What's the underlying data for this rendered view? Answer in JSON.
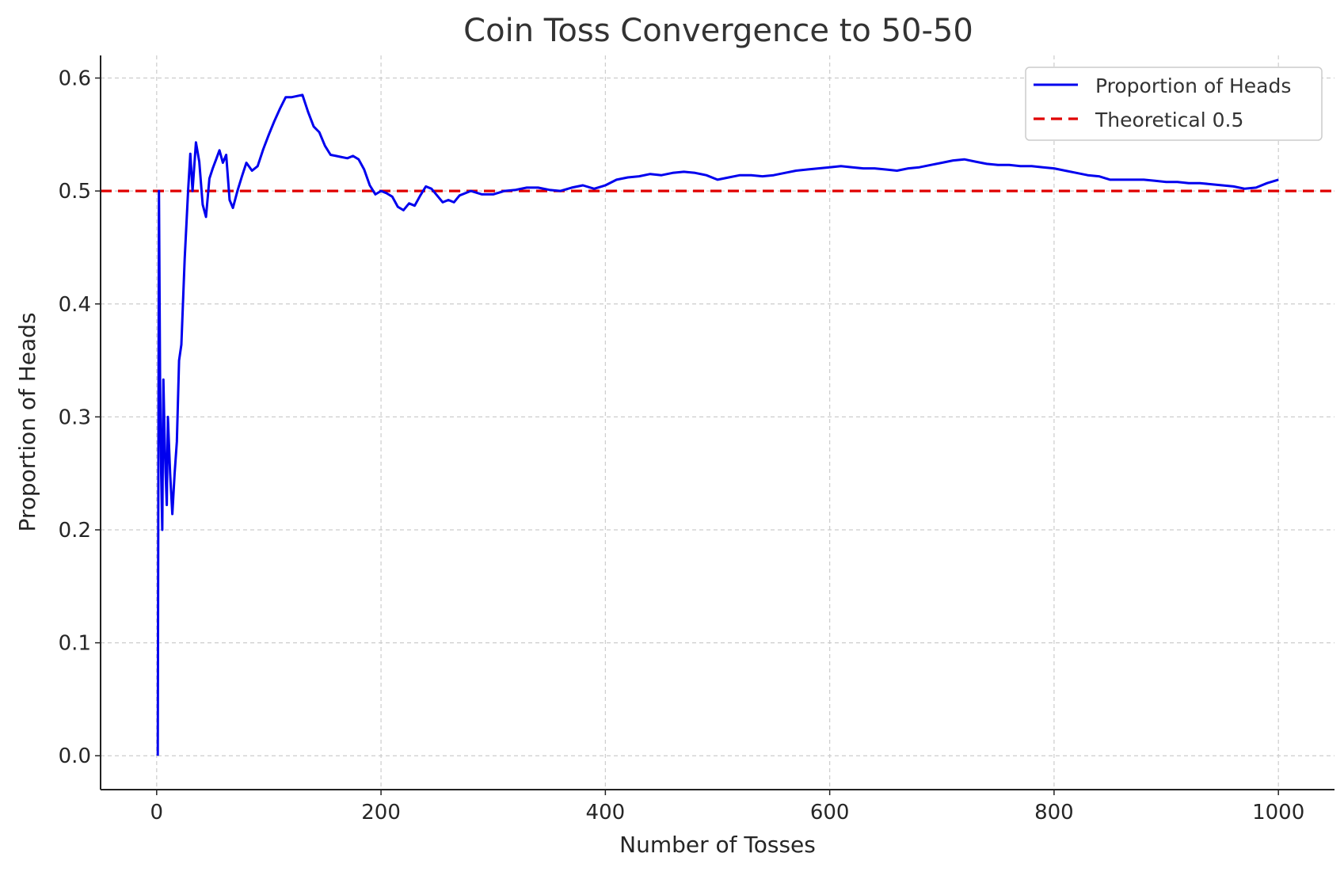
{
  "chart_data": {
    "type": "line",
    "title": "Coin Toss Convergence to 50-50",
    "xlabel": "Number of Tosses",
    "ylabel": "Proportion of Heads",
    "xlim": [
      -50,
      1050
    ],
    "ylim": [
      -0.03,
      0.62
    ],
    "xticks": [
      0,
      200,
      400,
      600,
      800,
      1000
    ],
    "yticks": [
      0.0,
      0.1,
      0.2,
      0.3,
      0.4,
      0.5,
      0.6
    ],
    "xtick_labels": [
      "0",
      "200",
      "400",
      "600",
      "800",
      "1000"
    ],
    "ytick_labels": [
      "0.0",
      "0.1",
      "0.2",
      "0.3",
      "0.4",
      "0.5",
      "0.6"
    ],
    "grid": true,
    "legend_position": "top-right",
    "series": [
      {
        "name": "Proportion of Heads",
        "color": "#0000ee",
        "style": "solid",
        "x": [
          1,
          2,
          3,
          4,
          5,
          6,
          7,
          8,
          9,
          10,
          12,
          14,
          16,
          18,
          20,
          22,
          25,
          28,
          30,
          32,
          35,
          38,
          41,
          44,
          47,
          50,
          53,
          56,
          59,
          62,
          65,
          68,
          72,
          76,
          80,
          85,
          90,
          95,
          100,
          105,
          110,
          115,
          120,
          125,
          130,
          135,
          140,
          145,
          150,
          155,
          160,
          165,
          170,
          175,
          180,
          185,
          190,
          195,
          200,
          205,
          210,
          215,
          220,
          225,
          230,
          235,
          240,
          245,
          250,
          255,
          260,
          265,
          270,
          275,
          280,
          290,
          300,
          310,
          320,
          330,
          340,
          350,
          360,
          370,
          380,
          390,
          400,
          410,
          420,
          430,
          440,
          450,
          460,
          470,
          480,
          490,
          500,
          510,
          520,
          530,
          540,
          550,
          560,
          570,
          580,
          590,
          600,
          610,
          620,
          630,
          640,
          650,
          660,
          670,
          680,
          690,
          700,
          710,
          720,
          730,
          740,
          750,
          760,
          770,
          780,
          790,
          800,
          810,
          820,
          830,
          840,
          850,
          860,
          870,
          880,
          890,
          900,
          910,
          920,
          930,
          940,
          950,
          960,
          970,
          980,
          990,
          1000
        ],
        "y": [
          0.0,
          0.5,
          0.333,
          0.25,
          0.2,
          0.333,
          0.286,
          0.25,
          0.222,
          0.3,
          0.25,
          0.214,
          0.25,
          0.278,
          0.35,
          0.364,
          0.44,
          0.5,
          0.533,
          0.5,
          0.543,
          0.526,
          0.488,
          0.477,
          0.511,
          0.52,
          0.528,
          0.536,
          0.525,
          0.532,
          0.492,
          0.485,
          0.5,
          0.513,
          0.525,
          0.518,
          0.522,
          0.537,
          0.55,
          0.562,
          0.573,
          0.583,
          0.583,
          0.584,
          0.585,
          0.57,
          0.557,
          0.552,
          0.54,
          0.532,
          0.531,
          0.53,
          0.529,
          0.531,
          0.528,
          0.519,
          0.505,
          0.497,
          0.5,
          0.498,
          0.495,
          0.486,
          0.483,
          0.489,
          0.487,
          0.496,
          0.504,
          0.502,
          0.496,
          0.49,
          0.492,
          0.49,
          0.496,
          0.498,
          0.5,
          0.497,
          0.497,
          0.5,
          0.501,
          0.503,
          0.503,
          0.501,
          0.5,
          0.503,
          0.505,
          0.502,
          0.505,
          0.51,
          0.512,
          0.513,
          0.515,
          0.514,
          0.516,
          0.517,
          0.516,
          0.514,
          0.51,
          0.512,
          0.514,
          0.514,
          0.513,
          0.514,
          0.516,
          0.518,
          0.519,
          0.52,
          0.521,
          0.522,
          0.521,
          0.52,
          0.52,
          0.519,
          0.518,
          0.52,
          0.521,
          0.523,
          0.525,
          0.527,
          0.528,
          0.526,
          0.524,
          0.523,
          0.523,
          0.522,
          0.522,
          0.521,
          0.52,
          0.518,
          0.516,
          0.514,
          0.513,
          0.51,
          0.51,
          0.51,
          0.51,
          0.509,
          0.508,
          0.508,
          0.507,
          0.507,
          0.506,
          0.505,
          0.504,
          0.502,
          0.503,
          0.507,
          0.51
        ]
      },
      {
        "name": "Theoretical 0.5",
        "color": "#e00000",
        "style": "dashed",
        "x": [
          -50,
          1050
        ],
        "y": [
          0.5,
          0.5
        ]
      }
    ]
  }
}
